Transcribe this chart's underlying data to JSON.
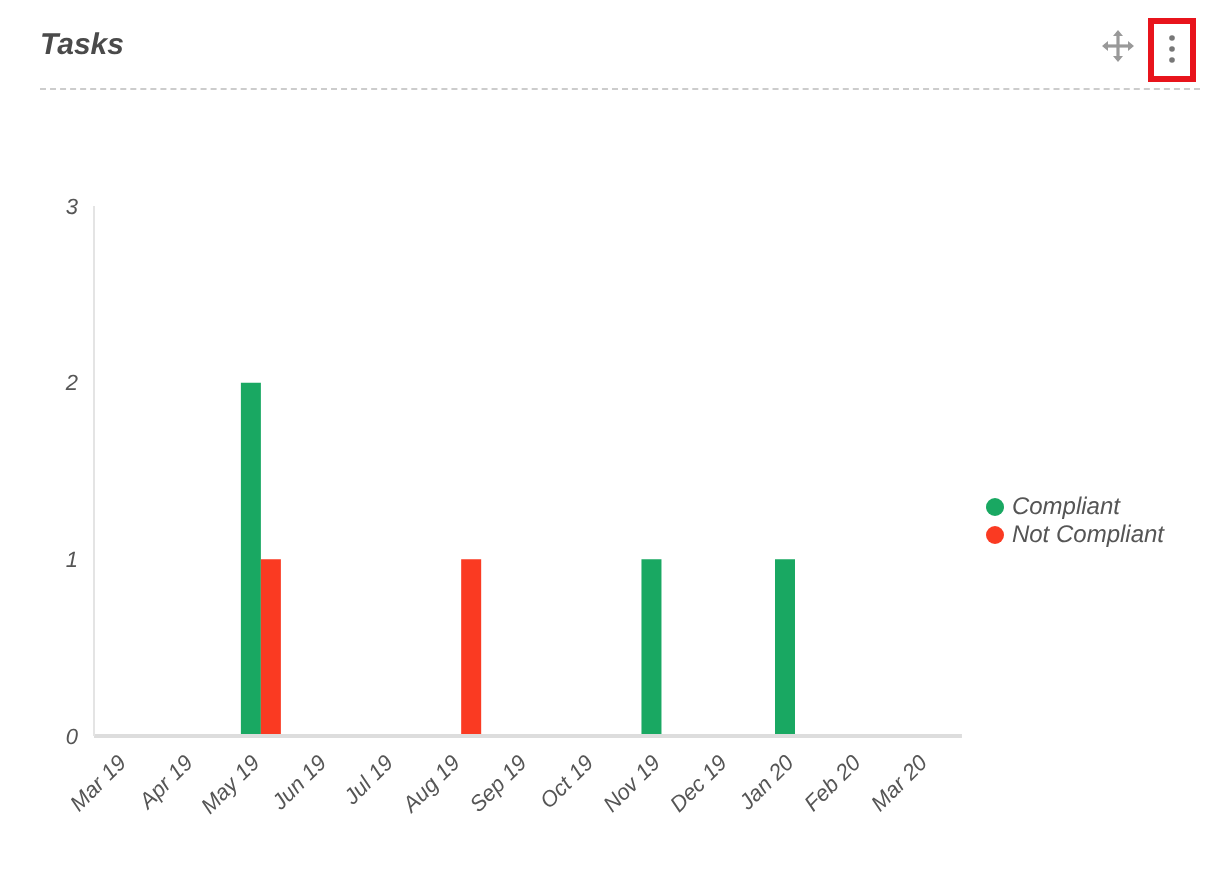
{
  "chart_data": {
    "type": "bar",
    "title": "Tasks",
    "categories": [
      "Mar 19",
      "Apr 19",
      "May 19",
      "Jun 19",
      "Jul 19",
      "Aug 19",
      "Sep 19",
      "Oct 19",
      "Nov 19",
      "Dec 19",
      "Jan 20",
      "Feb 20",
      "Mar 20"
    ],
    "series": [
      {
        "name": "Compliant",
        "color": "#19a862",
        "values": [
          0,
          0,
          2,
          0,
          0,
          0,
          0,
          0,
          1,
          0,
          1,
          0,
          0
        ]
      },
      {
        "name": "Not Compliant",
        "color": "#fa3a22",
        "values": [
          0,
          0,
          1,
          0,
          0,
          1,
          0,
          0,
          0,
          0,
          0,
          0,
          0
        ]
      }
    ],
    "ylim": [
      0,
      3
    ],
    "yticks": [
      0,
      1,
      2,
      3
    ],
    "grid": false,
    "legend": "right"
  }
}
